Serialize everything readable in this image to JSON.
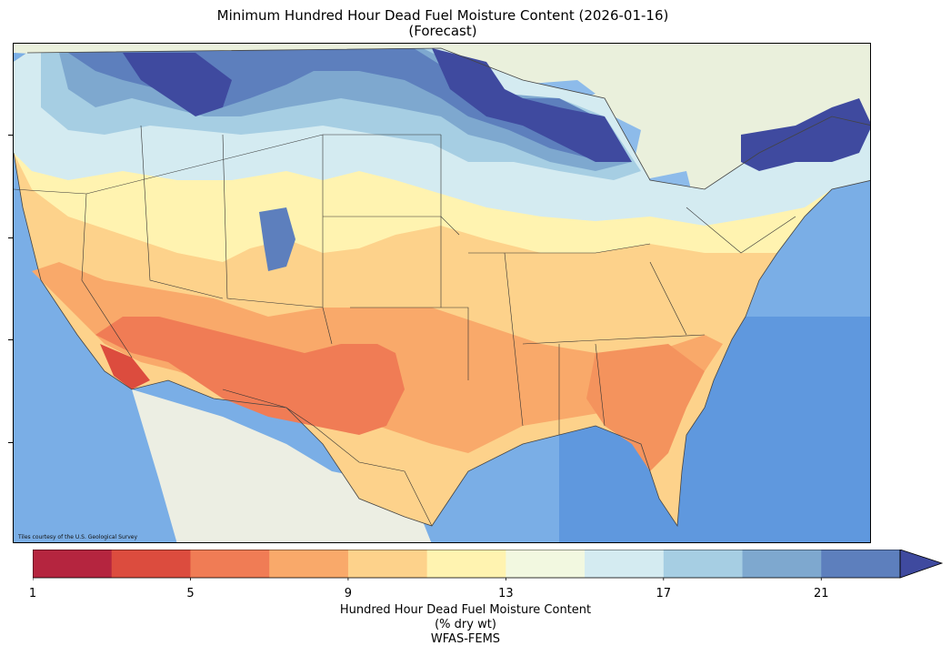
{
  "title": {
    "line1": "Minimum Hundred Hour Dead Fuel Moisture Content (2026-01-16)",
    "line2": "(Forecast)"
  },
  "map": {
    "credit": "Tiles courtesy of the U.S. Geological Survey"
  },
  "colorbar": {
    "colors": [
      "#b5253f",
      "#dc4c3e",
      "#f07c55",
      "#f9a96a",
      "#fdd28b",
      "#fff3b0",
      "#f2f8e0",
      "#d4ebf1",
      "#a6cee3",
      "#7ea8cf",
      "#5d7fbd",
      "#3f4a9f"
    ],
    "ticks": [
      {
        "value": 1,
        "label": "1"
      },
      {
        "value": 5,
        "label": "5"
      },
      {
        "value": 9,
        "label": "9"
      },
      {
        "value": 13,
        "label": "13"
      },
      {
        "value": 17,
        "label": "17"
      },
      {
        "value": 21,
        "label": "21"
      }
    ],
    "label_line1": "Hundred Hour Dead Fuel Moisture Content",
    "label_line2": "(% dry wt)",
    "label_line3": "WFAS-FEMS"
  }
}
